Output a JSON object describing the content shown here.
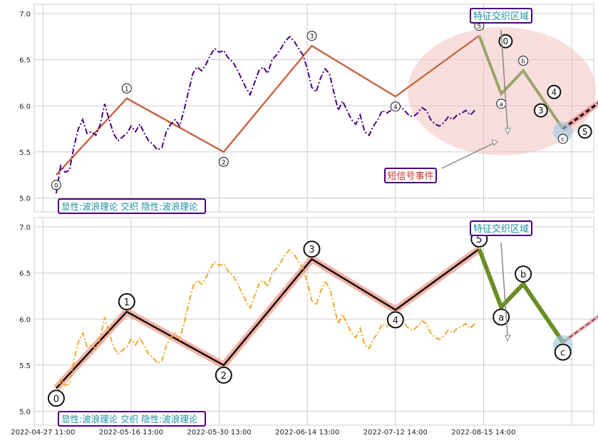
{
  "chart_data": [
    {
      "type": "line",
      "title": "",
      "xlabel": "",
      "ylabel": "",
      "ylim": [
        4.85,
        7.1
      ],
      "yticks": [
        5.0,
        5.5,
        6.0,
        6.5,
        7.0
      ],
      "ytick_labels": [
        "5.0",
        "5.5",
        "6.0",
        "6.5",
        "7.0"
      ],
      "grid": true,
      "price_series": {
        "name": "",
        "color": "#4b0082",
        "style": "dash-dot",
        "x": [
          0,
          1,
          2,
          3,
          4,
          5,
          6,
          7,
          8,
          9,
          10,
          11,
          12,
          13,
          14,
          15,
          16,
          17,
          18,
          19,
          20,
          21,
          22,
          23,
          24,
          25,
          26,
          27,
          28,
          29,
          30,
          31,
          32,
          33,
          34,
          35,
          36,
          37,
          38,
          39,
          40,
          41,
          42,
          43,
          44,
          45,
          46,
          47,
          48,
          49,
          50,
          51,
          52,
          53,
          54,
          55,
          56,
          57,
          58,
          59,
          60,
          61,
          62,
          63,
          64,
          65,
          66,
          67,
          68,
          69,
          70,
          71,
          72,
          73,
          74,
          75,
          76,
          77,
          78,
          79,
          80,
          81,
          82,
          83,
          84,
          85,
          86,
          87,
          88,
          89,
          90,
          91,
          92,
          93,
          94,
          95
        ],
        "values": [
          5.05,
          5.35,
          5.28,
          5.3,
          5.55,
          5.75,
          5.85,
          5.7,
          5.72,
          5.68,
          5.8,
          6.02,
          5.85,
          5.7,
          5.62,
          5.66,
          5.7,
          5.78,
          5.72,
          5.8,
          5.7,
          5.62,
          5.58,
          5.52,
          5.55,
          5.72,
          5.8,
          5.85,
          5.78,
          5.95,
          6.15,
          6.35,
          6.42,
          6.38,
          6.45,
          6.55,
          6.62,
          6.58,
          6.6,
          6.52,
          6.48,
          6.4,
          6.3,
          6.2,
          6.12,
          6.25,
          6.38,
          6.42,
          6.35,
          6.5,
          6.55,
          6.62,
          6.7,
          6.75,
          6.7,
          6.62,
          6.55,
          6.4,
          6.2,
          6.15,
          6.3,
          6.4,
          6.35,
          6.15,
          5.95,
          6.05,
          5.95,
          5.85,
          5.8,
          5.9,
          5.72,
          5.68,
          5.78,
          5.85,
          5.95,
          5.92,
          5.95,
          5.98,
          6.0,
          5.95,
          5.9,
          5.88,
          5.92,
          5.98,
          5.95,
          5.85,
          5.8,
          5.78,
          5.82,
          5.88,
          5.85,
          5.9,
          5.92,
          5.95,
          5.9,
          5.95
        ]
      },
      "wave_points": [
        {
          "label": "0",
          "x": 3,
          "y": 5.25
        },
        {
          "label": "1",
          "x": 19,
          "y": 6.08
        },
        {
          "label": "2",
          "x": 41,
          "y": 5.5
        },
        {
          "label": "3",
          "x": 61,
          "y": 6.65
        },
        {
          "label": "4",
          "x": 80,
          "y": 6.1
        },
        {
          "label": "5",
          "x": 99,
          "y": 6.76
        },
        {
          "label": "a",
          "x": 104,
          "y": 6.13
        },
        {
          "label": "b",
          "x": 109,
          "y": 6.38
        },
        {
          "label": "c",
          "x": 118,
          "y": 5.75
        }
      ],
      "extra_labels": [
        {
          "label": "0",
          "x": 105,
          "y": 6.7
        },
        {
          "label": "3",
          "x": 113,
          "y": 5.95
        },
        {
          "label": "4",
          "x": 116,
          "y": 6.15
        },
        {
          "label": "5",
          "x": 123,
          "y": 5.72
        }
      ],
      "annotations": [
        {
          "text": "特征交织区域",
          "type": "box"
        },
        {
          "text": "短信号事件",
          "type": "box"
        },
        {
          "text": "显性:波浪理论 交织 隐性:波浪理论",
          "type": "legend"
        }
      ]
    },
    {
      "type": "line",
      "title": "",
      "ylim": [
        4.85,
        7.1
      ],
      "yticks": [
        5.0,
        5.5,
        6.0,
        6.5,
        7.0
      ],
      "ytick_labels": [
        "5.0",
        "5.5",
        "6.0",
        "6.5",
        "7.0"
      ],
      "grid": true,
      "price_series": {
        "name": "",
        "color": "#f0a830",
        "style": "dash-dot"
      },
      "wave_points": [
        {
          "label": "0",
          "x": 3,
          "y": 5.25
        },
        {
          "label": "1",
          "x": 19,
          "y": 6.08
        },
        {
          "label": "2",
          "x": 41,
          "y": 5.5
        },
        {
          "label": "3",
          "x": 61,
          "y": 6.65
        },
        {
          "label": "4",
          "x": 80,
          "y": 6.1
        },
        {
          "label": "5",
          "x": 99,
          "y": 6.76
        },
        {
          "label": "a",
          "x": 104,
          "y": 6.13
        },
        {
          "label": "b",
          "x": 109,
          "y": 6.38
        },
        {
          "label": "c",
          "x": 118,
          "y": 5.75
        }
      ],
      "annotations": [
        {
          "text": "特征交织区域",
          "type": "box"
        },
        {
          "text": "显性:波浪理论 交织 隐性:波浪理论",
          "type": "legend"
        }
      ],
      "x_tick_labels": [
        "2022-04-27 11:00",
        "2022-05-16 13:00",
        "2022-05-30 13:00",
        "2022-06-14 13:00",
        "2022-07-12 14:00",
        "2022-08-15 14:00"
      ]
    }
  ],
  "labels": {
    "top_zone_box": "特征交织区域",
    "top_signal_box": "短信号事件",
    "top_legend": "显性:波浪理论 交织 隐性:波浪理论",
    "bottom_zone_box": "特征交织区域",
    "bottom_legend": "显性:波浪理论 交织 隐性:波浪理论"
  },
  "colors": {
    "panel_border": "#cccccc",
    "grid": "#cccccc",
    "box_border": "#4b0082",
    "box_text": "#1e90a0",
    "signal_text": "#c0392b",
    "top_price": "#4b0082",
    "bottom_price": "#f0a830",
    "wave_line": "#8b4513",
    "wave_thick": "#e88080",
    "correction": "#6b8e23",
    "zone_fill": "#f4c2c2"
  }
}
